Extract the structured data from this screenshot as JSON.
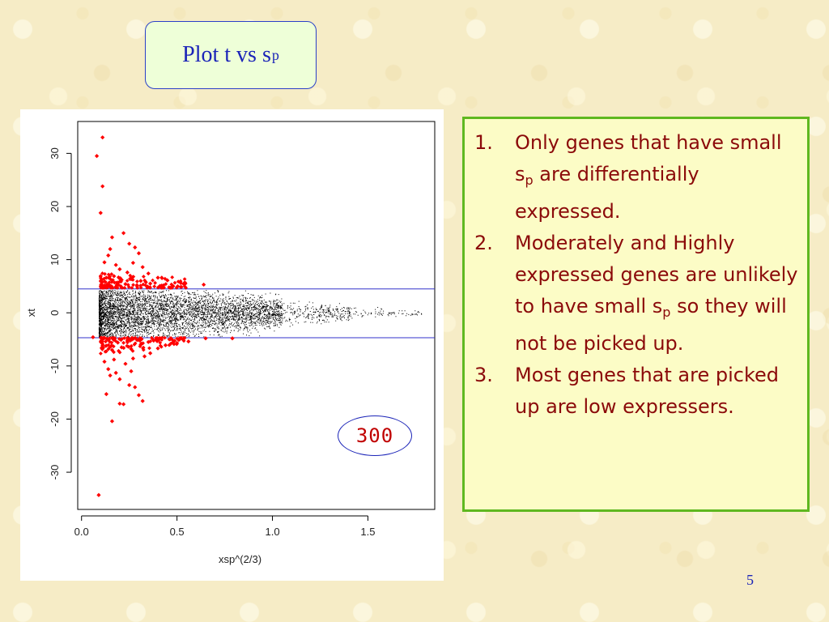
{
  "slide": {
    "title": {
      "main": "Plot t vs s",
      "sub": "p"
    },
    "page_number": "5"
  },
  "callout": {
    "label": "300"
  },
  "notes": [
    {
      "num": "1.",
      "before": "Only genes that have small s",
      "sub": "p",
      "after": " are differentially expressed."
    },
    {
      "num": "2.",
      "before": "Moderately and Highly expressed genes are unlikely to have small s",
      "sub": "p",
      "after": " so they will not be picked up."
    },
    {
      "num": "3.",
      "before": "Most genes that are picked up are low expressers.",
      "sub": "",
      "after": ""
    }
  ],
  "colors": {
    "title_text": "#1b24b8",
    "note_text": "#8b0a0a",
    "highlight_points": "#ff0000",
    "cutoff_lines": "#3333cc",
    "notes_border": "#5fb820"
  },
  "chart_data": {
    "type": "scatter",
    "xlabel": "xsp^(2/3)",
    "ylabel": "xt",
    "xlim": [
      -0.02,
      1.85
    ],
    "ylim": [
      -37,
      36
    ],
    "x_ticks": [
      0.0,
      0.5,
      1.0,
      1.5
    ],
    "x_tick_labels": [
      "0.0",
      "0.5",
      "1.0",
      "1.5"
    ],
    "y_ticks": [
      -30,
      -20,
      -10,
      0,
      10,
      20,
      30
    ],
    "y_tick_labels": [
      "-30",
      "-20",
      "-10",
      "0",
      "10",
      "20",
      "30"
    ],
    "hlines": [
      4.5,
      -4.7
    ],
    "grid": false,
    "series": [
      {
        "color": "#000000",
        "description_points": "dense cloud of all genes",
        "cloud_envelope": {
          "x_start": 0.09,
          "x_dense_end": 1.05,
          "x_sparse_end": 1.78,
          "y_halfwidth_at_start": 5.5,
          "y_halfwidth_at_end": 0.4
        }
      },
      {
        "color": "#ff0000",
        "points": [
          [
            0.08,
            29.5
          ],
          [
            0.11,
            33.0
          ],
          [
            0.11,
            23.8
          ],
          [
            0.1,
            18.8
          ],
          [
            0.09,
            -34.3
          ],
          [
            0.16,
            14.2
          ],
          [
            0.15,
            12.0
          ],
          [
            0.14,
            10.8
          ],
          [
            0.12,
            9.5
          ],
          [
            0.18,
            9.0
          ],
          [
            0.22,
            15.0
          ],
          [
            0.25,
            13.0
          ],
          [
            0.28,
            12.3
          ],
          [
            0.3,
            11.2
          ],
          [
            0.27,
            9.4
          ],
          [
            0.32,
            8.6
          ],
          [
            0.2,
            8.2
          ],
          [
            0.24,
            7.6
          ],
          [
            0.35,
            7.4
          ],
          [
            0.4,
            6.6
          ],
          [
            0.45,
            6.1
          ],
          [
            0.52,
            5.6
          ],
          [
            0.64,
            5.3
          ],
          [
            0.13,
            6.6
          ],
          [
            0.17,
            6.9
          ],
          [
            0.21,
            6.2
          ],
          [
            0.26,
            6.4
          ],
          [
            0.31,
            6.0
          ],
          [
            0.36,
            5.5
          ],
          [
            0.19,
            5.7
          ],
          [
            0.23,
            5.4
          ],
          [
            0.29,
            5.2
          ],
          [
            0.15,
            5.1
          ],
          [
            0.42,
            5.1
          ],
          [
            0.48,
            5.0
          ],
          [
            0.16,
            -20.4
          ],
          [
            0.13,
            -15.3
          ],
          [
            0.2,
            -17.1
          ],
          [
            0.22,
            -17.2
          ],
          [
            0.25,
            -13.6
          ],
          [
            0.3,
            -15.5
          ],
          [
            0.32,
            -16.6
          ],
          [
            0.28,
            -14.0
          ],
          [
            0.2,
            -12.5
          ],
          [
            0.18,
            -11.3
          ],
          [
            0.14,
            -10.6
          ],
          [
            0.12,
            -9.2
          ],
          [
            0.23,
            -9.6
          ],
          [
            0.27,
            -8.6
          ],
          [
            0.33,
            -8.2
          ],
          [
            0.36,
            -7.6
          ],
          [
            0.4,
            -6.7
          ],
          [
            0.44,
            -6.1
          ],
          [
            0.5,
            -5.7
          ],
          [
            0.56,
            -5.4
          ],
          [
            0.65,
            -4.8
          ],
          [
            0.79,
            -4.8
          ],
          [
            0.06,
            -4.6
          ],
          [
            0.11,
            -6.2
          ],
          [
            0.16,
            -7.0
          ],
          [
            0.21,
            -6.5
          ],
          [
            0.26,
            -6.8
          ],
          [
            0.31,
            -6.0
          ],
          [
            0.35,
            -5.5
          ],
          [
            0.19,
            -5.6
          ],
          [
            0.24,
            -5.3
          ],
          [
            0.29,
            -5.1
          ],
          [
            0.14,
            -5.1
          ],
          [
            0.39,
            -5.0
          ],
          [
            0.46,
            -5.0
          ],
          [
            0.17,
            -8.8
          ],
          [
            0.26,
            -11.0
          ],
          [
            0.15,
            -11.8
          ]
        ]
      }
    ]
  }
}
